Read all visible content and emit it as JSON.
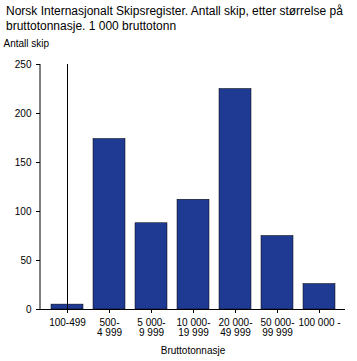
{
  "chart_data": {
    "type": "bar",
    "title": "Norsk Internasjonalt Skipsregister. Antall skip, etter størrelse på bruttotonnasje. 1 000 bruttotonn",
    "y_label": "Antall skip",
    "x_label": "Bruttotonnasje",
    "categories": [
      "100-499",
      "500-4 999",
      "5 000-9 999",
      "10 000-19 999",
      "20 000-49 999",
      "50 000-99 999",
      "100 000 -"
    ],
    "values": [
      5,
      174,
      88,
      112,
      225,
      75,
      26
    ],
    "color": "#1f3a93",
    "ylim": [
      0,
      250
    ],
    "yticks": [
      0,
      50,
      100,
      150,
      200,
      250
    ],
    "grid": false
  }
}
